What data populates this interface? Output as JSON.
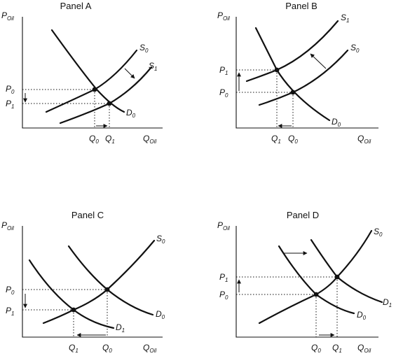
{
  "panels": {
    "a": {
      "title": "Panel A",
      "y_axis": {
        "letter": "P",
        "sub": "Oil"
      },
      "x_axis": {
        "letter": "Q",
        "sub": "Oil"
      },
      "supply_0": {
        "letter": "S",
        "sub": "0"
      },
      "supply_1": {
        "letter": "S",
        "sub": "1"
      },
      "demand_0": {
        "letter": "D",
        "sub": "0"
      },
      "price_0": {
        "letter": "P",
        "sub": "0"
      },
      "price_1": {
        "letter": "P",
        "sub": "1"
      },
      "qty_0": {
        "letter": "Q",
        "sub": "0"
      },
      "qty_1": {
        "letter": "Q",
        "sub": "1"
      }
    },
    "b": {
      "title": "Panel B",
      "y_axis": {
        "letter": "P",
        "sub": "Oil"
      },
      "x_axis": {
        "letter": "Q",
        "sub": "Oil"
      },
      "supply_1": {
        "letter": "S",
        "sub": "1"
      },
      "supply_0": {
        "letter": "S",
        "sub": "0"
      },
      "demand_0": {
        "letter": "D",
        "sub": "0"
      },
      "price_1": {
        "letter": "P",
        "sub": "1"
      },
      "price_0": {
        "letter": "P",
        "sub": "0"
      },
      "qty_1": {
        "letter": "Q",
        "sub": "1"
      },
      "qty_0": {
        "letter": "Q",
        "sub": "0"
      }
    },
    "c": {
      "title": "Panel C",
      "y_axis": {
        "letter": "P",
        "sub": "Oil"
      },
      "x_axis": {
        "letter": "Q",
        "sub": "Oil"
      },
      "supply_0": {
        "letter": "S",
        "sub": "0"
      },
      "demand_0": {
        "letter": "D",
        "sub": "0"
      },
      "demand_1": {
        "letter": "D",
        "sub": "1"
      },
      "price_0": {
        "letter": "P",
        "sub": "0"
      },
      "price_1": {
        "letter": "P",
        "sub": "1"
      },
      "qty_1": {
        "letter": "Q",
        "sub": "1"
      },
      "qty_0": {
        "letter": "Q",
        "sub": "0"
      }
    },
    "d": {
      "title": "Panel D",
      "y_axis": {
        "letter": "P",
        "sub": "Oil"
      },
      "x_axis": {
        "letter": "Q",
        "sub": "Oil"
      },
      "supply_0": {
        "letter": "S",
        "sub": "0"
      },
      "demand_1": {
        "letter": "D",
        "sub": "1"
      },
      "demand_0": {
        "letter": "D",
        "sub": "0"
      },
      "price_1": {
        "letter": "P",
        "sub": "1"
      },
      "price_0": {
        "letter": "P",
        "sub": "0"
      },
      "qty_0": {
        "letter": "Q",
        "sub": "0"
      },
      "qty_1": {
        "letter": "Q",
        "sub": "1"
      }
    }
  }
}
